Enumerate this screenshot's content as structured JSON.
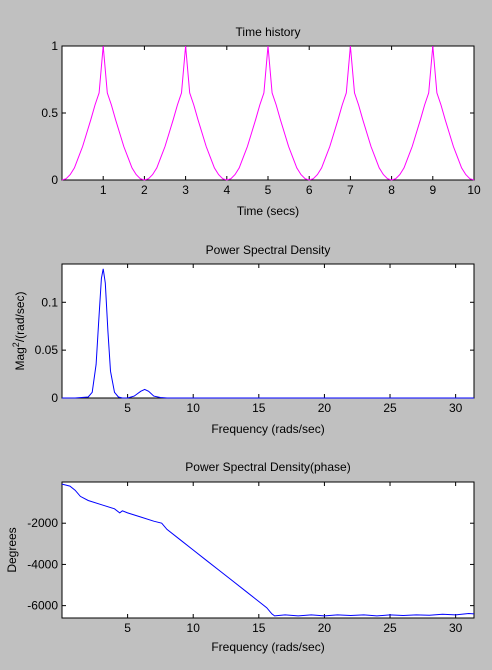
{
  "colors": {
    "figure_bg": "#c0c0c0",
    "axes_bg": "#ffffff",
    "axis": "#000000",
    "magenta": "#ff00ff",
    "blue": "#0000ff"
  },
  "chart_data": [
    {
      "type": "line",
      "title": "Time history",
      "xlabel": "Time (secs)",
      "ylabel": "",
      "xlim": [
        0,
        10
      ],
      "ylim": [
        0,
        1
      ],
      "xticks": [
        1,
        2,
        3,
        4,
        5,
        6,
        7,
        8,
        9,
        10
      ],
      "yticks": [
        0,
        0.5,
        1
      ],
      "xtick_labels": [
        "1",
        "2",
        "3",
        "4",
        "5",
        "6",
        "7",
        "8",
        "9",
        "10"
      ],
      "ytick_labels": [
        "0",
        "0.5",
        "1"
      ],
      "grid": false,
      "series": [
        {
          "color": "#ff00ff",
          "x": [
            0,
            0.1,
            0.2,
            0.3,
            0.4,
            0.5,
            0.6,
            0.7,
            0.8,
            0.9,
            1.0,
            1.1,
            1.2,
            1.3,
            1.4,
            1.5,
            1.6,
            1.7,
            1.8,
            1.9,
            2.0,
            2.1,
            2.2,
            2.3,
            2.4,
            2.5,
            2.6,
            2.7,
            2.8,
            2.9,
            3.0,
            3.1,
            3.2,
            3.3,
            3.4,
            3.5,
            3.6,
            3.7,
            3.8,
            3.9,
            4.0,
            4.1,
            4.2,
            4.3,
            4.4,
            4.5,
            4.6,
            4.7,
            4.8,
            4.9,
            5.0,
            5.1,
            5.2,
            5.3,
            5.4,
            5.5,
            5.6,
            5.7,
            5.8,
            5.9,
            6.0,
            6.1,
            6.2,
            6.3,
            6.4,
            6.5,
            6.6,
            6.7,
            6.8,
            6.9,
            7.0,
            7.1,
            7.2,
            7.3,
            7.4,
            7.5,
            7.6,
            7.7,
            7.8,
            7.9,
            8.0,
            8.1,
            8.2,
            8.3,
            8.4,
            8.5,
            8.6,
            8.7,
            8.8,
            8.9,
            9.0,
            9.1,
            9.2,
            9.3,
            9.4,
            9.5,
            9.6,
            9.7,
            9.8,
            9.9,
            10.0
          ],
          "y": [
            0,
            0.01,
            0.04,
            0.09,
            0.17,
            0.25,
            0.35,
            0.45,
            0.56,
            0.65,
            1.0,
            0.65,
            0.56,
            0.45,
            0.35,
            0.25,
            0.17,
            0.09,
            0.04,
            0.01,
            0,
            0.01,
            0.04,
            0.09,
            0.17,
            0.25,
            0.35,
            0.45,
            0.56,
            0.65,
            1.0,
            0.65,
            0.56,
            0.45,
            0.35,
            0.25,
            0.17,
            0.09,
            0.04,
            0.01,
            0,
            0.01,
            0.04,
            0.09,
            0.17,
            0.25,
            0.35,
            0.45,
            0.56,
            0.65,
            1.0,
            0.65,
            0.56,
            0.45,
            0.35,
            0.25,
            0.17,
            0.09,
            0.04,
            0.01,
            0,
            0.01,
            0.04,
            0.09,
            0.17,
            0.25,
            0.35,
            0.45,
            0.56,
            0.65,
            1.0,
            0.65,
            0.56,
            0.45,
            0.35,
            0.25,
            0.17,
            0.09,
            0.04,
            0.01,
            0,
            0.01,
            0.04,
            0.09,
            0.17,
            0.25,
            0.35,
            0.45,
            0.56,
            0.65,
            1.0,
            0.65,
            0.56,
            0.45,
            0.35,
            0.25,
            0.17,
            0.09,
            0.04,
            0.01,
            0
          ]
        }
      ]
    },
    {
      "type": "line",
      "title": "Power Spectral Density",
      "xlabel": "Frequency (rads/sec)",
      "ylabel": "Mag2/(rad/sec)",
      "ylabel_main": "Mag",
      "ylabel_sup": "2",
      "ylabel_rest": "/(rad/sec)",
      "xlim": [
        0,
        31.4
      ],
      "ylim": [
        0,
        0.14
      ],
      "xticks": [
        5,
        10,
        15,
        20,
        25,
        30
      ],
      "yticks": [
        0,
        0.05,
        0.1
      ],
      "xtick_labels": [
        "5",
        "10",
        "15",
        "20",
        "25",
        "30"
      ],
      "ytick_labels": [
        "0",
        "0.05",
        "0.1"
      ],
      "grid": false,
      "series": [
        {
          "color": "#0000ff",
          "x": [
            0,
            1.0,
            2.0,
            2.3,
            2.6,
            2.8,
            3.0,
            3.14,
            3.3,
            3.5,
            3.7,
            4.0,
            4.3,
            4.6,
            5.0,
            5.5,
            6.0,
            6.3,
            6.6,
            7.0,
            7.5,
            8.0,
            9.0,
            12.0,
            16.0,
            20.0,
            25.0,
            31.4
          ],
          "y": [
            0,
            0,
            0.001,
            0.006,
            0.035,
            0.08,
            0.125,
            0.135,
            0.12,
            0.07,
            0.028,
            0.006,
            0.001,
            0,
            0,
            0.002,
            0.007,
            0.009,
            0.007,
            0.002,
            0.0005,
            0,
            0,
            0,
            0,
            0,
            0,
            0
          ]
        }
      ]
    },
    {
      "type": "line",
      "title": "Power Spectral Density(phase)",
      "xlabel": "Frequency (rads/sec)",
      "ylabel": "Degrees",
      "xlim": [
        0,
        31.4
      ],
      "ylim": [
        -6600,
        0
      ],
      "xticks": [
        5,
        10,
        15,
        20,
        25,
        30
      ],
      "yticks": [
        -6000,
        -4000,
        -2000
      ],
      "xtick_labels": [
        "5",
        "10",
        "15",
        "20",
        "25",
        "30"
      ],
      "ytick_labels": [
        "-6000",
        "-4000",
        "-2000"
      ],
      "grid": false,
      "series": [
        {
          "color": "#0000ff",
          "x": [
            0,
            0.6,
            1.0,
            1.4,
            2.0,
            3.0,
            4.0,
            4.4,
            4.6,
            5.0,
            6.0,
            7.0,
            7.6,
            8.0,
            9.0,
            10.0,
            11.0,
            12.0,
            13.0,
            14.0,
            15.0,
            15.6,
            16.0,
            16.2,
            17.0,
            18.0,
            19.0,
            20.0,
            21.0,
            22.0,
            23.0,
            24.0,
            25.0,
            26.0,
            27.0,
            28.0,
            29.0,
            30.0,
            31.0,
            31.4
          ],
          "y": [
            -100,
            -200,
            -400,
            -700,
            -900,
            -1100,
            -1300,
            -1500,
            -1400,
            -1500,
            -1700,
            -1900,
            -2000,
            -2300,
            -2800,
            -3300,
            -3800,
            -4300,
            -4800,
            -5300,
            -5800,
            -6100,
            -6400,
            -6500,
            -6450,
            -6500,
            -6450,
            -6500,
            -6450,
            -6480,
            -6450,
            -6500,
            -6450,
            -6480,
            -6450,
            -6470,
            -6420,
            -6450,
            -6380,
            -6400
          ]
        }
      ]
    }
  ]
}
